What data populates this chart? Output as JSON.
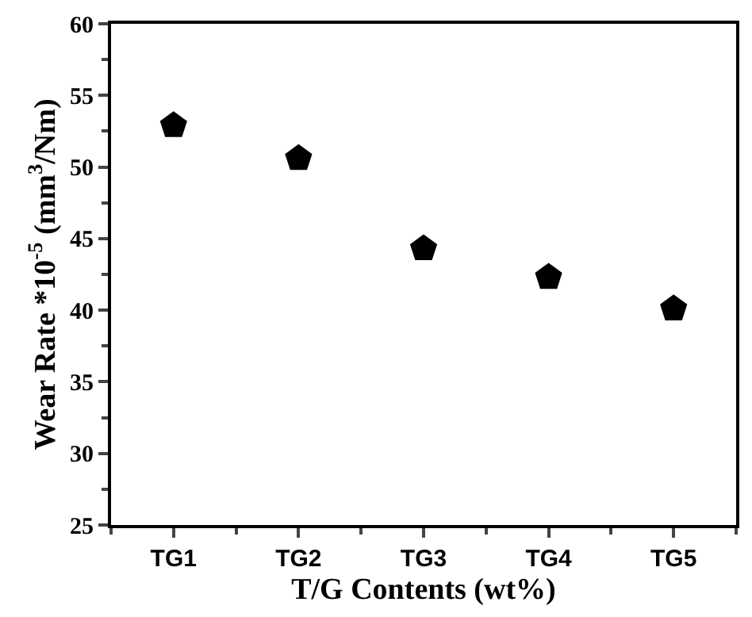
{
  "chart_data": {
    "type": "scatter",
    "xlabel": "T/G Contents (wt%)",
    "ylabel": "Wear Rate *10$^{-5}$ (mm$^{3}$/Nm)",
    "categories": [
      "TG1",
      "TG2",
      "TG3",
      "TG4",
      "TG5"
    ],
    "series": [
      {
        "color": "#000000",
        "values": [
          52.9,
          50.6,
          44.3,
          42.3,
          40.1
        ]
      }
    ],
    "ylim": [
      25,
      60
    ],
    "yticks": [
      25,
      30,
      35,
      40,
      45,
      50,
      55,
      60
    ]
  }
}
